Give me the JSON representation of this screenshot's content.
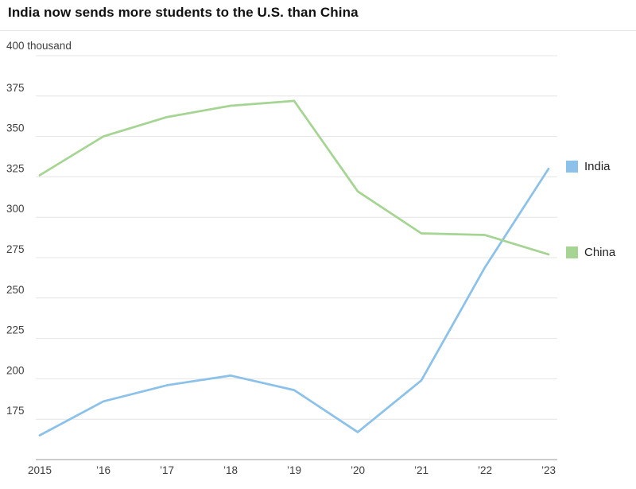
{
  "title": "India now sends more students to the U.S. than China",
  "chart_data": {
    "type": "line",
    "x": [
      "2015",
      "’16",
      "’17",
      "’18",
      "’19",
      "’20",
      "’21",
      "’22",
      "’23"
    ],
    "series": [
      {
        "name": "India",
        "color": "#8cc2e9",
        "values": [
          165,
          186,
          196,
          202,
          193,
          167,
          199,
          269,
          330
        ]
      },
      {
        "name": "China",
        "color": "#a5d493",
        "values": [
          326,
          350,
          362,
          369,
          372,
          316,
          290,
          289,
          277
        ]
      }
    ],
    "y_top_label": "400 thousand",
    "yticks": [
      175,
      200,
      225,
      250,
      275,
      300,
      325,
      350,
      375
    ],
    "ylim": [
      150,
      400
    ],
    "grid": true,
    "legend_position": "right",
    "colors": {
      "gridline": "#e4e4e4",
      "axis_line": "#9a9a9a",
      "tick_text": "#3f3f3f"
    }
  }
}
